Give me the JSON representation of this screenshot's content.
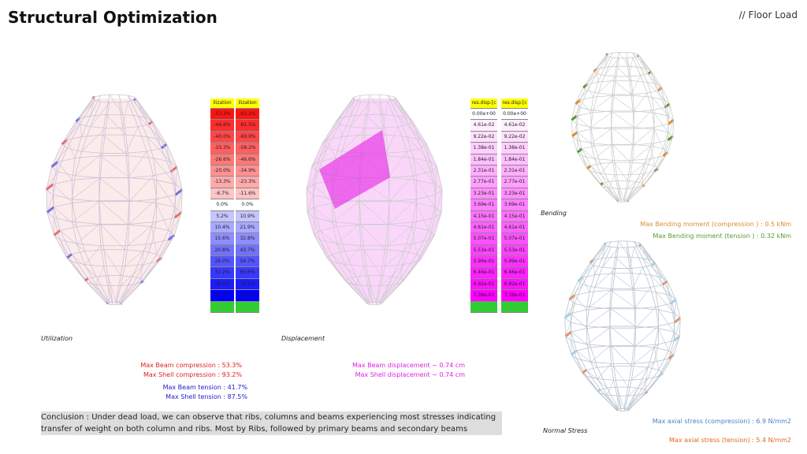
{
  "title": "Structural Optimization",
  "tag": "// Floor Load",
  "utilization": {
    "caption": "Utilization",
    "header": "ilization",
    "beam": [
      "-53.3%",
      "-46.6%",
      "-40.0%",
      "-33.3%",
      "-26.6%",
      "-20.0%",
      "-13.3%",
      "-6.7%",
      "0.0%",
      "5.2%",
      "10.4%",
      "15.6%",
      "20.8%",
      "26.0%",
      "31.2%",
      "36.4%",
      "41.7%"
    ],
    "shell": [
      "-93.2%",
      "-81.5%",
      "-69.9%",
      "-58.2%",
      "-46.6%",
      "-34.9%",
      "-23.3%",
      "-11.6%",
      "0.0%",
      "10.9%",
      "21.9%",
      "32.8%",
      "43.7%",
      "54.7%",
      "65.6%",
      "76.5%",
      "87.5%"
    ],
    "stats": [
      "Max Beam compression : 53.3%",
      "Max Shell compression : 93.2%",
      "Max Beam tension : 41.7%",
      "Max Shell tension : 87.5%"
    ],
    "colors": {
      "compression": "#e02020",
      "tension": "#2020d0"
    }
  },
  "displacement": {
    "caption": "Displacement",
    "header": "res.disp.[c",
    "values": [
      "0.00e+00",
      "4.61e-02",
      "9.22e-02",
      "1.38e-01",
      "1.84e-01",
      "2.31e-01",
      "2.77e-01",
      "3.23e-01",
      "3.69e-01",
      "4.15e-01",
      "4.61e-01",
      "5.07e-01",
      "5.53e-01",
      "5.99e-01",
      "6.46e-01",
      "6.92e-01",
      "7.38e-01"
    ],
    "stats": [
      "Max Beam displacement ~ 0.74 cm",
      "Max Shell displacement ~ 0.74 cm"
    ],
    "color": "#e020e0"
  },
  "bending": {
    "caption": "Bending",
    "stats": [
      "Max Bending moment (compression ) : 0.5 kNm",
      "Max Bending moment (tension ) : 0.32 kNm"
    ],
    "colors": [
      "#e08a30",
      "#5a9a30"
    ]
  },
  "normal": {
    "caption": "Normal Stress",
    "stats": [
      "Max axial stress (compression) : 6.9 N/mm2",
      "Max axial stress (tension) : 5.4 N/mm2"
    ],
    "colors": [
      "#4a80c8",
      "#e06a20"
    ]
  },
  "conclusion": "Conclusion : Under dead load, we can observe that ribs, columns and beams experiencing most stresses indicating transfer of weight on both column and ribs. Most by Ribs, followed by primary beams and secondary beams"
}
